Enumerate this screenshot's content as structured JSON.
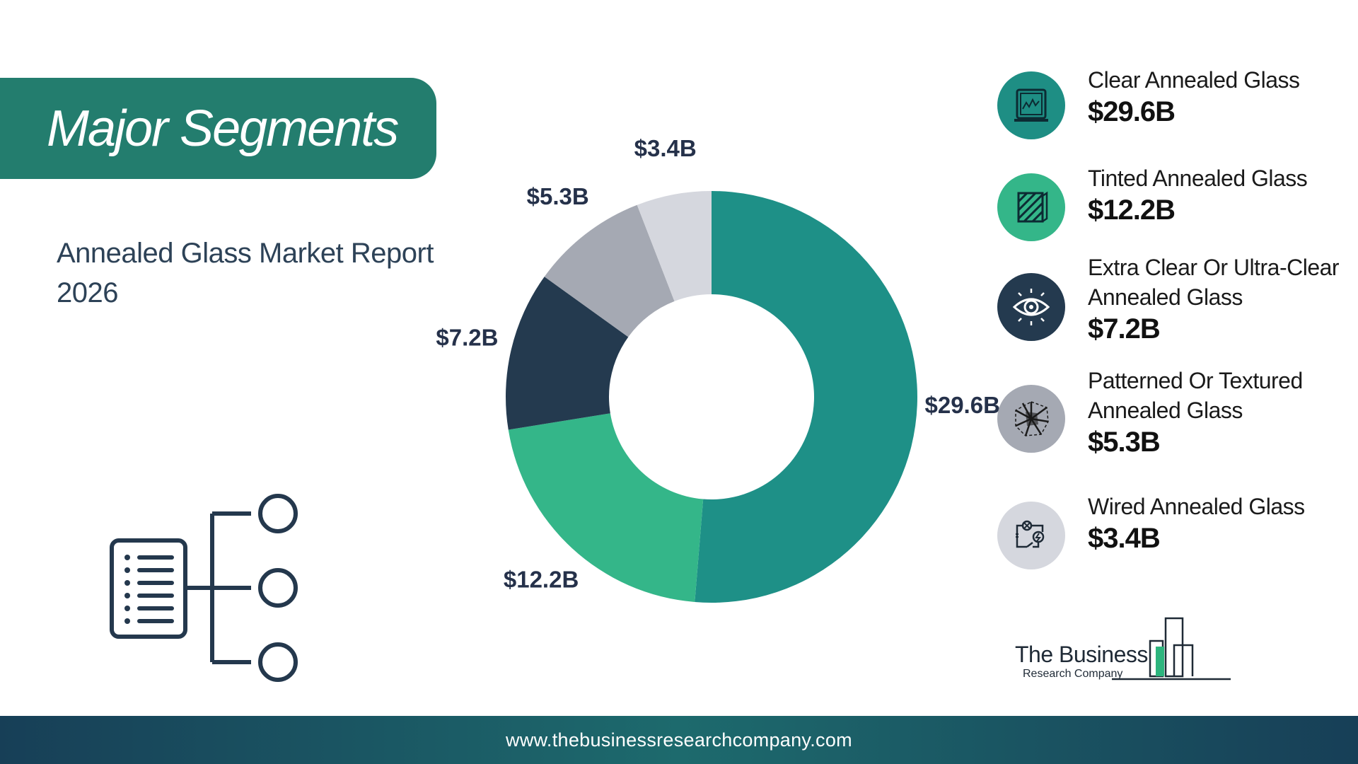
{
  "header": {
    "title": "Major Segments"
  },
  "report": {
    "title": "Annealed Glass Market Report 2026"
  },
  "chart_data": {
    "type": "pie",
    "title": "",
    "categories": [
      "Clear Annealed Glass",
      "Tinted Annealed Glass",
      "Extra Clear Or Ultra-Clear Annealed Glass",
      "Patterned Or Textured Annealed Glass",
      "Wired Annealed Glass"
    ],
    "values": [
      29.6,
      12.2,
      7.2,
      5.3,
      3.4
    ],
    "labels": [
      "$29.6B",
      "$12.2B",
      "$7.2B",
      "$5.3B",
      "$3.4B"
    ],
    "colors": [
      "#1e9087",
      "#34b689",
      "#243a4f",
      "#a5a9b3",
      "#d5d7de"
    ],
    "donut": true,
    "unit": "$B"
  },
  "legend": [
    {
      "name": "Clear Annealed Glass",
      "value": "$29.6B",
      "color": "#1e8e84",
      "icon": "glass-panel-icon"
    },
    {
      "name": "Tinted Annealed Glass",
      "value": "$12.2B",
      "color": "#34b689",
      "icon": "striped-glass-icon"
    },
    {
      "name": "Extra Clear Or Ultra-Clear Annealed Glass",
      "value": "$7.2B",
      "color": "#243a4f",
      "icon": "eye-icon"
    },
    {
      "name": "Patterned Or Textured Annealed Glass",
      "value": "$5.3B",
      "color": "#a5a9b3",
      "icon": "shattered-glass-icon"
    },
    {
      "name": "Wired Annealed Glass",
      "value": "$3.4B",
      "color": "#d5d7de",
      "icon": "circuit-icon"
    }
  ],
  "logo": {
    "name": "The Business",
    "sub": "Research Company"
  },
  "footer": {
    "url": "www.thebusinessresearchcompany.com"
  }
}
